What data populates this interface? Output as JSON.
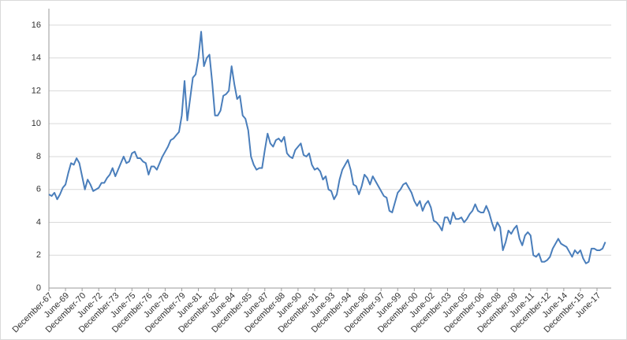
{
  "chart_data": {
    "type": "line",
    "categories": [
      "December-67",
      null,
      null,
      null,
      null,
      null,
      "June-69",
      null,
      null,
      null,
      null,
      null,
      "December-70",
      null,
      null,
      null,
      null,
      null,
      "June-72",
      null,
      null,
      null,
      null,
      null,
      "December-73",
      null,
      null,
      null,
      null,
      null,
      "June-75",
      null,
      null,
      null,
      null,
      null,
      "December-76",
      null,
      null,
      null,
      null,
      null,
      "June-78",
      null,
      null,
      null,
      null,
      null,
      "December-79",
      null,
      null,
      null,
      null,
      null,
      "June-81",
      null,
      null,
      null,
      null,
      null,
      "December-82",
      null,
      null,
      null,
      null,
      null,
      "June-84",
      null,
      null,
      null,
      null,
      null,
      "December-85",
      null,
      null,
      null,
      null,
      null,
      "June-87",
      null,
      null,
      null,
      null,
      null,
      "December-88",
      null,
      null,
      null,
      null,
      null,
      "June-90",
      null,
      null,
      null,
      null,
      null,
      "December-91",
      null,
      null,
      null,
      null,
      null,
      "June-93",
      null,
      null,
      null,
      null,
      null,
      "December-94",
      null,
      null,
      null,
      null,
      null,
      "June-96",
      null,
      null,
      null,
      null,
      null,
      "December-97",
      null,
      null,
      null,
      null,
      null,
      "June-99",
      null,
      null,
      null,
      null,
      null,
      "December-00",
      null,
      null,
      null,
      null,
      null,
      "June-02",
      null,
      null,
      null,
      null,
      null,
      "December-03",
      null,
      null,
      null,
      null,
      null,
      "June-05",
      null,
      null,
      null,
      null,
      null,
      "December-06",
      null,
      null,
      null,
      null,
      null,
      "June-08",
      null,
      null,
      null,
      null,
      null,
      "December-09",
      null,
      null,
      null,
      null,
      null,
      "June-11",
      null,
      null,
      null,
      null,
      null,
      "December-12",
      null,
      null,
      null,
      null,
      null,
      "June-14",
      null,
      null,
      null,
      null,
      null,
      "December-15",
      null,
      null,
      null,
      null,
      null,
      "June-17",
      null,
      null,
      null
    ],
    "values": [
      5.7,
      5.6,
      5.8,
      5.4,
      5.7,
      6.1,
      6.3,
      7.0,
      7.6,
      7.5,
      7.9,
      7.6,
      6.8,
      6.0,
      6.6,
      6.3,
      5.9,
      6.0,
      6.1,
      6.4,
      6.4,
      6.7,
      6.9,
      7.3,
      6.8,
      7.2,
      7.6,
      8.0,
      7.6,
      7.7,
      8.2,
      8.3,
      7.9,
      7.9,
      7.7,
      7.6,
      6.9,
      7.4,
      7.4,
      7.2,
      7.6,
      8.0,
      8.3,
      8.6,
      9.0,
      9.1,
      9.3,
      9.5,
      10.5,
      12.6,
      10.2,
      11.5,
      12.8,
      13.0,
      14.0,
      15.6,
      13.5,
      14.0,
      14.2,
      12.5,
      10.5,
      10.5,
      10.8,
      11.7,
      11.8,
      12.0,
      13.5,
      12.4,
      11.5,
      11.7,
      10.5,
      10.3,
      9.6,
      8.0,
      7.5,
      7.2,
      7.3,
      7.3,
      8.4,
      9.4,
      8.8,
      8.6,
      9.0,
      9.1,
      8.9,
      9.2,
      8.2,
      8.0,
      7.9,
      8.4,
      8.6,
      8.8,
      8.1,
      8.0,
      8.2,
      7.5,
      7.2,
      7.3,
      7.1,
      6.6,
      6.8,
      6.0,
      5.9,
      5.4,
      5.7,
      6.6,
      7.2,
      7.5,
      7.8,
      7.2,
      6.3,
      6.2,
      5.7,
      6.2,
      6.9,
      6.7,
      6.3,
      6.8,
      6.5,
      6.2,
      5.9,
      5.6,
      5.5,
      4.7,
      4.6,
      5.2,
      5.8,
      6.0,
      6.3,
      6.4,
      6.1,
      5.8,
      5.3,
      5.0,
      5.3,
      4.7,
      5.1,
      5.3,
      4.9,
      4.1,
      4.0,
      3.8,
      3.5,
      4.3,
      4.3,
      3.9,
      4.6,
      4.2,
      4.2,
      4.3,
      4.0,
      4.2,
      4.5,
      4.7,
      5.1,
      4.7,
      4.6,
      4.6,
      5.0,
      4.6,
      4.0,
      3.5,
      4.0,
      3.7,
      2.3,
      2.8,
      3.5,
      3.3,
      3.6,
      3.8,
      3.0,
      2.6,
      3.2,
      3.4,
      3.2,
      2.0,
      1.9,
      2.1,
      1.6,
      1.6,
      1.7,
      1.9,
      2.4,
      2.7,
      3.0,
      2.7,
      2.6,
      2.5,
      2.2,
      1.9,
      2.3,
      2.1,
      2.3,
      1.8,
      1.5,
      1.6,
      2.4,
      2.4,
      2.3,
      2.3,
      2.4,
      2.8
    ],
    "color": "#4a7ebb",
    "ylim": [
      0,
      17
    ],
    "yticks": [
      0,
      2,
      4,
      6,
      8,
      10,
      12,
      14,
      16
    ],
    "grid": true
  }
}
